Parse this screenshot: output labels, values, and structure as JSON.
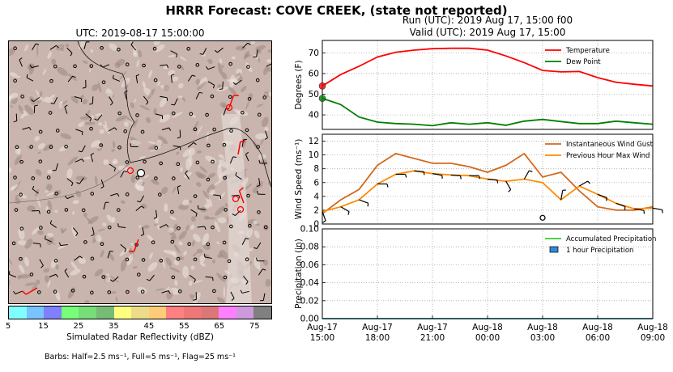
{
  "title": "HRRR Forecast: COVE CREEK, (state not reported)",
  "run_line": "Run (UTC): 2019 Aug 17, 15:00 f00",
  "valid_line": "Valid (UTC): 2019 Aug 17, 15:00",
  "map": {
    "title": "UTC: 2019-08-17 15:00:00",
    "colorbar_label": "Simulated Radar Reflectivity (dBZ)",
    "colorbar_ticks": [
      "5",
      "15",
      "25",
      "35",
      "45",
      "55",
      "65",
      "75"
    ],
    "colorbar_colors": [
      "#7fffff",
      "#77c4ff",
      "#8080ff",
      "#77ff77",
      "#77dd77",
      "#77bb77",
      "#ffff80",
      "#eedd88",
      "#ffcc77",
      "#ff8080",
      "#ee7777",
      "#dd7777",
      "#ff80ff",
      "#cc99dd",
      "#808080"
    ],
    "barbs_note": "Barbs: Half=2.5 ms⁻¹, Full=5 ms⁻¹, Flag=25 ms⁻¹"
  },
  "chart_data": [
    {
      "type": "line",
      "ylabel": "Degrees (F)",
      "ylim": [
        33,
        76
      ],
      "yticks": [
        "40",
        "50",
        "60",
        "70"
      ],
      "grid": true,
      "legend": "top-right",
      "x": [
        "15:00",
        "16:00",
        "17:00",
        "18:00",
        "19:00",
        "20:00",
        "21:00",
        "22:00",
        "23:00",
        "00:00",
        "01:00",
        "02:00",
        "03:00",
        "04:00",
        "05:00",
        "06:00",
        "07:00",
        "08:00",
        "09:00"
      ],
      "series": [
        {
          "name": "Temperature",
          "color": "#ff0000",
          "values": [
            54,
            59.5,
            63.5,
            68,
            70.3,
            71.3,
            72,
            72.2,
            72.2,
            71.3,
            68.5,
            65.3,
            61.5,
            60.8,
            61,
            58,
            55.8,
            54.8,
            54
          ]
        },
        {
          "name": "Dew Point",
          "color": "#008000",
          "values": [
            48,
            45,
            39,
            36.5,
            35.8,
            35.5,
            34.8,
            36.2,
            35.5,
            36.2,
            35,
            37,
            37.8,
            36.8,
            35.8,
            35.8,
            37,
            36.2,
            35.5
          ]
        }
      ]
    },
    {
      "type": "line",
      "ylabel": "Wind Speed (ms⁻¹)",
      "ylim": [
        0,
        13
      ],
      "yticks": [
        "0",
        "2",
        "4",
        "6",
        "8",
        "10",
        "12"
      ],
      "grid": true,
      "legend": "top-right",
      "x": [
        "15:00",
        "16:00",
        "17:00",
        "18:00",
        "19:00",
        "20:00",
        "21:00",
        "22:00",
        "23:00",
        "00:00",
        "01:00",
        "02:00",
        "03:00",
        "04:00",
        "05:00",
        "06:00",
        "07:00",
        "08:00",
        "09:00"
      ],
      "series": [
        {
          "name": "Instantaneous Wind Gust",
          "color": "#d2691e",
          "values": [
            1.5,
            3.5,
            5,
            8.5,
            10.2,
            9.5,
            8.8,
            8.8,
            8.3,
            7.5,
            8.5,
            10.2,
            6.8,
            7.5,
            4.8,
            2.5,
            2,
            2,
            2.5
          ]
        },
        {
          "name": "Previous Hour Max Wind",
          "color": "#ff8c00",
          "values": [
            1.8,
            2.5,
            3.5,
            5.8,
            7.2,
            7.7,
            7.3,
            7.1,
            7.0,
            6.5,
            6.2,
            6.5,
            6.0,
            3.5,
            5.5,
            4.3,
            3,
            2.2,
            2.3
          ]
        }
      ]
    },
    {
      "type": "line",
      "ylabel": "Precipitation (in)",
      "xlabel": "",
      "ylim": [
        0,
        0.1
      ],
      "yticks": [
        "0.00",
        "0.02",
        "0.04",
        "0.06",
        "0.08",
        "0.10"
      ],
      "grid": true,
      "legend": "top-right",
      "x": [
        "15:00",
        "16:00",
        "17:00",
        "18:00",
        "19:00",
        "20:00",
        "21:00",
        "22:00",
        "23:00",
        "00:00",
        "01:00",
        "02:00",
        "03:00",
        "04:00",
        "05:00",
        "06:00",
        "07:00",
        "08:00",
        "09:00"
      ],
      "xtick_labels": [
        [
          "Aug-17",
          "15:00"
        ],
        [
          "Aug-17",
          "18:00"
        ],
        [
          "Aug-17",
          "21:00"
        ],
        [
          "Aug-18",
          "00:00"
        ],
        [
          "Aug-18",
          "03:00"
        ],
        [
          "Aug-18",
          "06:00"
        ],
        [
          "Aug-18",
          "09:00"
        ]
      ],
      "series": [
        {
          "name": "Accumulated Precipitation",
          "color": "#33cc33",
          "values": [
            0,
            0,
            0,
            0,
            0,
            0,
            0,
            0,
            0,
            0,
            0,
            0,
            0,
            0,
            0,
            0,
            0,
            0,
            0
          ]
        },
        {
          "name": "1 hour Precipitation",
          "color": "#3388dd",
          "values": [
            0,
            0,
            0,
            0,
            0,
            0,
            0,
            0,
            0,
            0,
            0,
            0,
            0,
            0,
            0,
            0,
            0,
            0,
            0
          ]
        }
      ]
    }
  ]
}
